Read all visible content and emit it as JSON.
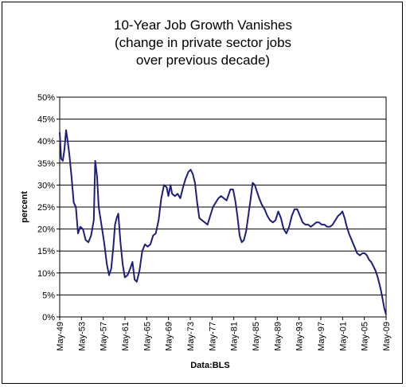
{
  "chart_data": {
    "type": "line",
    "title_lines": [
      "10-Year Job Growth Vanishes",
      "(change in private sector jobs",
      "over previous decade)"
    ],
    "xlabel": "Data:BLS",
    "ylabel": "percent",
    "ylim": [
      0,
      50
    ],
    "yticks": [
      0,
      5,
      10,
      15,
      20,
      25,
      30,
      35,
      40,
      45,
      50
    ],
    "ytick_labels": [
      "0%",
      "5%",
      "10%",
      "15%",
      "20%",
      "25%",
      "30%",
      "35%",
      "40%",
      "45%",
      "50%"
    ],
    "xlim": [
      1949.33,
      2009.33
    ],
    "xticks": [
      1949.33,
      1953.33,
      1957.33,
      1961.33,
      1965.33,
      1969.33,
      1973.33,
      1977.33,
      1981.33,
      1985.33,
      1989.33,
      1993.33,
      1997.33,
      2001.33,
      2005.33,
      2009.33
    ],
    "xtick_labels": [
      "May-49",
      "May-53",
      "May-57",
      "May-61",
      "May-65",
      "May-69",
      "May-73",
      "May-77",
      "May-81",
      "May-85",
      "May-89",
      "May-93",
      "May-97",
      "May-01",
      "May-05",
      "May-09"
    ],
    "grid": {
      "horizontal": true,
      "vertical": false
    },
    "series": [
      {
        "color": "#1f1f7a",
        "points": [
          [
            1949.33,
            42.0
          ],
          [
            1949.6,
            36.0
          ],
          [
            1949.9,
            35.5
          ],
          [
            1950.2,
            38.0
          ],
          [
            1950.5,
            42.5
          ],
          [
            1950.8,
            40.0
          ],
          [
            1951.1,
            37.0
          ],
          [
            1951.5,
            32.0
          ],
          [
            1951.9,
            26.0
          ],
          [
            1952.3,
            25.0
          ],
          [
            1952.7,
            19.0
          ],
          [
            1953.1,
            20.5
          ],
          [
            1953.6,
            20.0
          ],
          [
            1954.1,
            17.5
          ],
          [
            1954.6,
            17.0
          ],
          [
            1955.1,
            18.5
          ],
          [
            1955.6,
            22.0
          ],
          [
            1955.85,
            35.5
          ],
          [
            1956.0,
            34.0
          ],
          [
            1956.2,
            32.0
          ],
          [
            1956.5,
            25.0
          ],
          [
            1957.0,
            21.0
          ],
          [
            1957.5,
            17.0
          ],
          [
            1958.0,
            12.0
          ],
          [
            1958.4,
            9.5
          ],
          [
            1958.8,
            11.0
          ],
          [
            1959.2,
            16.0
          ],
          [
            1959.5,
            21.0
          ],
          [
            1959.8,
            22.5
          ],
          [
            1960.1,
            23.5
          ],
          [
            1960.5,
            17.0
          ],
          [
            1960.9,
            12.0
          ],
          [
            1961.3,
            9.0
          ],
          [
            1961.8,
            9.5
          ],
          [
            1962.3,
            11.0
          ],
          [
            1962.7,
            12.5
          ],
          [
            1963.1,
            8.5
          ],
          [
            1963.5,
            8.0
          ],
          [
            1964.0,
            10.5
          ],
          [
            1964.5,
            15.0
          ],
          [
            1965.0,
            16.5
          ],
          [
            1965.5,
            16.0
          ],
          [
            1966.0,
            16.5
          ],
          [
            1966.5,
            18.5
          ],
          [
            1967.0,
            19.0
          ],
          [
            1967.5,
            22.0
          ],
          [
            1968.0,
            27.0
          ],
          [
            1968.5,
            30.0
          ],
          [
            1969.0,
            29.5
          ],
          [
            1969.3,
            27.5
          ],
          [
            1969.7,
            30.0
          ],
          [
            1970.0,
            28.0
          ],
          [
            1970.5,
            27.5
          ],
          [
            1971.0,
            28.0
          ],
          [
            1971.5,
            27.0
          ],
          [
            1972.0,
            29.5
          ],
          [
            1972.5,
            31.5
          ],
          [
            1973.0,
            33.0
          ],
          [
            1973.4,
            33.5
          ],
          [
            1973.8,
            32.5
          ],
          [
            1974.2,
            30.5
          ],
          [
            1974.6,
            26.0
          ],
          [
            1975.0,
            22.5
          ],
          [
            1975.5,
            22.0
          ],
          [
            1976.0,
            21.5
          ],
          [
            1976.5,
            21.0
          ],
          [
            1977.0,
            23.0
          ],
          [
            1977.5,
            25.0
          ],
          [
            1978.0,
            26.0
          ],
          [
            1978.5,
            27.0
          ],
          [
            1979.0,
            27.5
          ],
          [
            1979.5,
            27.0
          ],
          [
            1980.0,
            26.5
          ],
          [
            1980.3,
            27.5
          ],
          [
            1980.7,
            29.0
          ],
          [
            1981.2,
            29.0
          ],
          [
            1981.6,
            26.5
          ],
          [
            1982.0,
            23.0
          ],
          [
            1982.4,
            18.5
          ],
          [
            1982.8,
            17.0
          ],
          [
            1983.2,
            17.5
          ],
          [
            1983.6,
            19.5
          ],
          [
            1984.0,
            23.0
          ],
          [
            1984.4,
            26.5
          ],
          [
            1984.8,
            30.5
          ],
          [
            1985.2,
            30.0
          ],
          [
            1985.6,
            28.5
          ],
          [
            1986.0,
            27.0
          ],
          [
            1986.5,
            25.5
          ],
          [
            1987.0,
            24.5
          ],
          [
            1987.5,
            23.0
          ],
          [
            1988.0,
            22.0
          ],
          [
            1988.5,
            21.5
          ],
          [
            1989.0,
            22.0
          ],
          [
            1989.5,
            24.0
          ],
          [
            1990.0,
            22.5
          ],
          [
            1990.5,
            20.0
          ],
          [
            1991.0,
            19.0
          ],
          [
            1991.5,
            20.5
          ],
          [
            1992.0,
            23.0
          ],
          [
            1992.5,
            24.5
          ],
          [
            1993.0,
            24.5
          ],
          [
            1993.5,
            23.0
          ],
          [
            1994.0,
            21.5
          ],
          [
            1994.5,
            21.0
          ],
          [
            1995.0,
            21.0
          ],
          [
            1995.5,
            20.5
          ],
          [
            1996.0,
            21.0
          ],
          [
            1996.5,
            21.5
          ],
          [
            1997.0,
            21.5
          ],
          [
            1997.5,
            21.0
          ],
          [
            1998.0,
            21.0
          ],
          [
            1998.5,
            20.5
          ],
          [
            1999.0,
            20.5
          ],
          [
            1999.5,
            21.0
          ],
          [
            2000.0,
            22.0
          ],
          [
            2000.5,
            23.0
          ],
          [
            2001.0,
            23.5
          ],
          [
            2001.3,
            24.0
          ],
          [
            2001.7,
            22.5
          ],
          [
            2002.1,
            20.5
          ],
          [
            2002.5,
            19.0
          ],
          [
            2003.0,
            17.5
          ],
          [
            2003.5,
            16.0
          ],
          [
            2004.0,
            14.5
          ],
          [
            2004.5,
            14.0
          ],
          [
            2005.0,
            14.5
          ],
          [
            2005.4,
            14.5
          ],
          [
            2005.8,
            14.0
          ],
          [
            2006.2,
            13.0
          ],
          [
            2006.6,
            12.5
          ],
          [
            2007.0,
            11.5
          ],
          [
            2007.4,
            10.5
          ],
          [
            2007.8,
            9.0
          ],
          [
            2008.1,
            7.5
          ],
          [
            2008.4,
            6.0
          ],
          [
            2008.7,
            4.0
          ],
          [
            2009.0,
            2.0
          ],
          [
            2009.33,
            0.5
          ]
        ]
      }
    ]
  }
}
